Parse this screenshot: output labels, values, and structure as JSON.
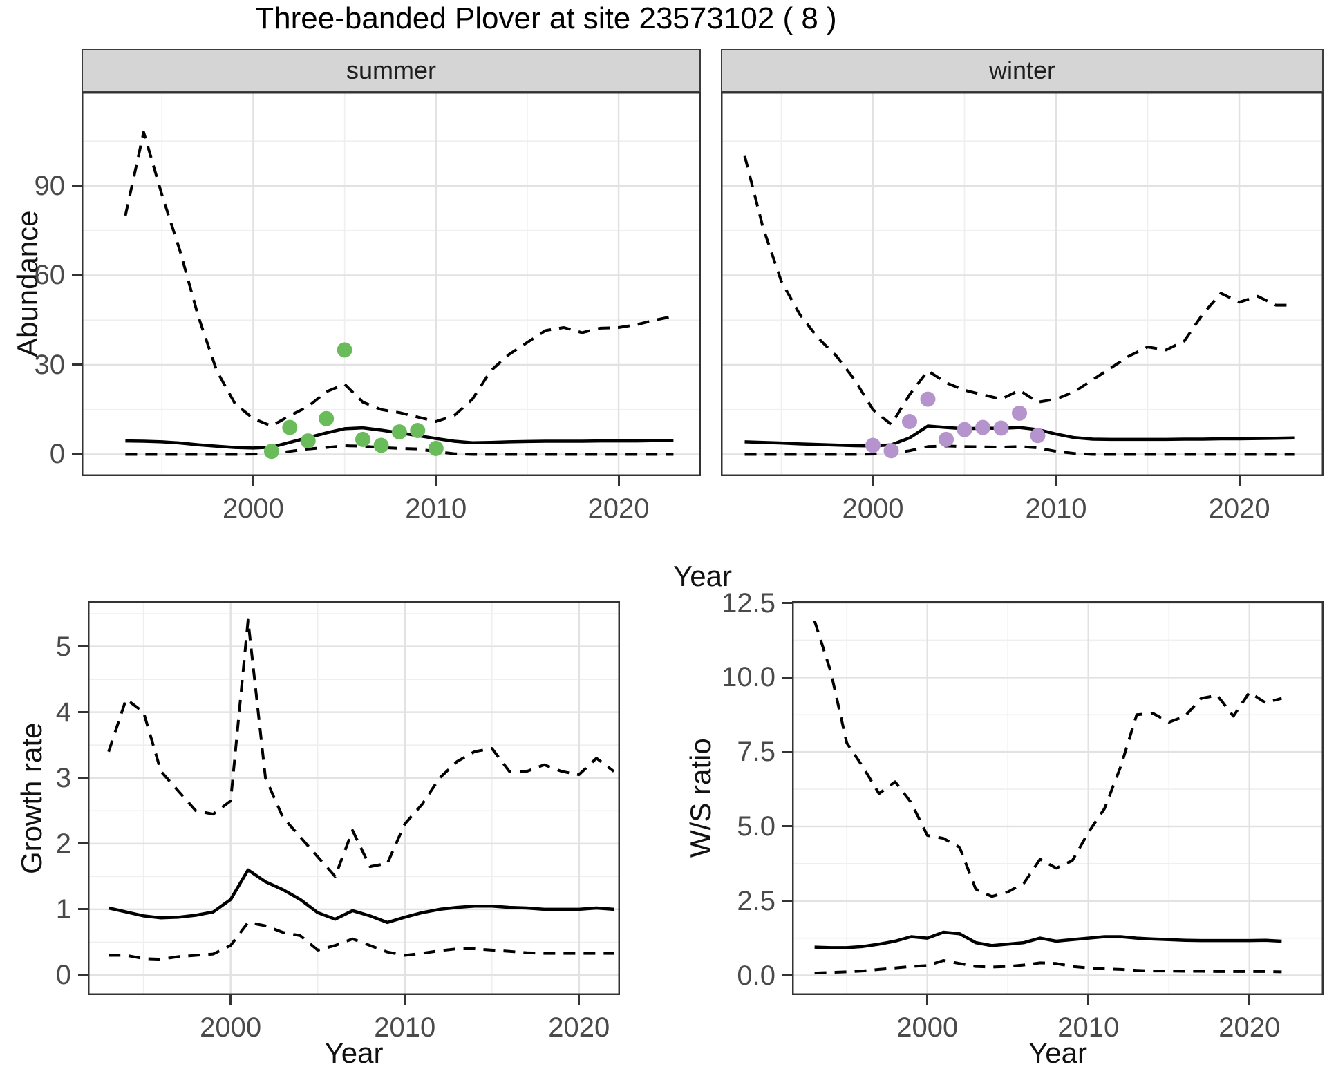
{
  "title": "Three-banded Plover at site 23573102 ( 8 )",
  "facets": [
    {
      "label": "summer"
    },
    {
      "label": "winter"
    }
  ],
  "axis_titles": {
    "top_x": "Year",
    "growth_x": "Year",
    "ws_x": "Year",
    "top_y": "Abundance",
    "growth_y": "Growth rate",
    "ws_y": "W/S ratio"
  },
  "colors": {
    "summer_points": "#6abc5a",
    "winter_points": "#b593cd",
    "line": "#000000",
    "strip_bg": "#d5d5d5",
    "grid_major": "#e2e2e2",
    "grid_minor": "#efefef",
    "panel_border": "#333333"
  },
  "chart_data": [
    {
      "id": "summer",
      "type": "line",
      "facet": "summer",
      "xlabel": "Year",
      "ylabel": "Abundance",
      "xlim": [
        1990.6,
        2024.5
      ],
      "ylim": [
        -7.3,
        121.5
      ],
      "x": [
        1993,
        1994,
        1995,
        1996,
        1997,
        1998,
        1999,
        2000,
        2001,
        2002,
        2003,
        2004,
        2005,
        2006,
        2007,
        2008,
        2009,
        2010,
        2011,
        2012,
        2013,
        2014,
        2015,
        2016,
        2017,
        2018,
        2019,
        2020,
        2021,
        2022,
        2023
      ],
      "series": [
        {
          "name": "upper_95ci",
          "style": "dashed",
          "values": [
            80,
            108,
            87,
            68,
            46,
            28,
            17,
            12,
            9.5,
            13,
            16,
            21,
            23.5,
            17.5,
            15,
            14,
            12.5,
            11,
            13,
            18.5,
            28,
            33.5,
            37.5,
            41.5,
            42.5,
            40.8,
            42.3,
            42.5,
            43.5,
            45,
            46.3
          ]
        },
        {
          "name": "median",
          "style": "solid",
          "values": [
            4.5,
            4.4,
            4.2,
            3.8,
            3.2,
            2.7,
            2.3,
            2.1,
            2.4,
            4.0,
            5.6,
            7.2,
            8.6,
            8.9,
            8.1,
            7.2,
            6.3,
            5.3,
            4.4,
            3.9,
            4.0,
            4.2,
            4.3,
            4.4,
            4.4,
            4.4,
            4.5,
            4.5,
            4.5,
            4.6,
            4.7
          ]
        },
        {
          "name": "lower_95ci",
          "style": "dashed",
          "values": [
            0,
            0,
            0,
            0,
            0,
            0,
            0,
            0.1,
            0.2,
            1.0,
            1.8,
            2.3,
            2.9,
            2.7,
            2.3,
            2.0,
            1.8,
            0.9,
            0.2,
            0,
            0,
            0,
            0,
            0,
            0,
            0,
            0,
            0,
            0,
            0,
            0
          ]
        }
      ],
      "points": {
        "name": "observed_counts",
        "color": "#6abc5a",
        "x": [
          2001,
          2002,
          2003,
          2004,
          2005,
          2006,
          2007,
          2008,
          2009,
          2010
        ],
        "y": [
          1,
          9,
          4.5,
          12,
          35,
          5,
          3,
          7.5,
          8,
          2
        ]
      },
      "x_ticks": {
        "values": [
          2000,
          2010,
          2020
        ],
        "labels": [
          "2000",
          "2010",
          "2020"
        ],
        "minor": [
          1995,
          2005,
          2015
        ]
      },
      "y_ticks": {
        "values": [
          0,
          30,
          60,
          90
        ],
        "labels": [
          "0",
          "30",
          "60",
          "90"
        ],
        "minor": [
          15,
          45,
          75,
          105
        ]
      }
    },
    {
      "id": "winter",
      "type": "line",
      "facet": "winter",
      "xlabel": "Year",
      "ylabel": "Abundance",
      "xlim": [
        1991.7,
        2024.6
      ],
      "ylim": [
        -7.3,
        121.5
      ],
      "x": [
        1993,
        1994,
        1995,
        1996,
        1997,
        1998,
        1999,
        2000,
        2001,
        2002,
        2003,
        2004,
        2005,
        2006,
        2007,
        2008,
        2009,
        2010,
        2011,
        2012,
        2013,
        2014,
        2015,
        2016,
        2017,
        2018,
        2019,
        2020,
        2021,
        2022,
        2023
      ],
      "series": [
        {
          "name": "upper_95ci",
          "style": "dashed",
          "values": [
            100,
            76,
            58,
            47,
            39,
            33,
            25,
            15,
            10,
            20,
            28,
            24,
            21.5,
            20,
            18.5,
            21.5,
            17.5,
            18.5,
            21,
            25,
            29,
            33,
            36,
            35,
            38,
            47,
            54,
            51,
            53,
            50,
            50
          ]
        },
        {
          "name": "median",
          "style": "solid",
          "values": [
            4.2,
            4.0,
            3.8,
            3.5,
            3.3,
            3.1,
            2.9,
            2.8,
            3.2,
            5.5,
            9.5,
            9.0,
            8.6,
            8.8,
            8.7,
            9.0,
            8.3,
            6.8,
            5.6,
            5.1,
            5.0,
            5.0,
            5.0,
            5.0,
            5.1,
            5.1,
            5.2,
            5.2,
            5.3,
            5.4,
            5.5
          ]
        },
        {
          "name": "lower_95ci",
          "style": "dashed",
          "values": [
            0,
            0,
            0,
            0,
            0,
            0,
            0,
            0.1,
            0.3,
            1.2,
            2.6,
            2.8,
            2.6,
            2.5,
            2.4,
            2.6,
            2.2,
            1.0,
            0.3,
            0,
            0,
            0,
            0,
            0,
            0,
            0,
            0,
            0,
            0,
            0,
            0
          ]
        }
      ],
      "points": {
        "name": "observed_counts",
        "color": "#b593cd",
        "x": [
          2000,
          2001,
          2002,
          2003,
          2004,
          2005,
          2006,
          2007,
          2008,
          2009
        ],
        "y": [
          3,
          1.2,
          11,
          18.5,
          5,
          8.3,
          9,
          8.8,
          13.8,
          6.3
        ]
      },
      "x_ticks": {
        "values": [
          2000,
          2010,
          2020
        ],
        "labels": [
          "2000",
          "2010",
          "2020"
        ],
        "minor": [
          1995,
          2005,
          2015
        ]
      },
      "y_ticks": {
        "values": [
          0,
          30,
          60,
          90
        ],
        "labels": [
          "0",
          "30",
          "60",
          "90"
        ],
        "minor": [
          15,
          45,
          75,
          105
        ]
      }
    },
    {
      "id": "growth",
      "type": "line",
      "xlabel": "Year",
      "ylabel": "Growth rate",
      "xlim": [
        1991.8,
        2022.35
      ],
      "ylim": [
        -0.305,
        5.69
      ],
      "x": [
        1993,
        1994,
        1995,
        1996,
        1997,
        1998,
        1999,
        2000,
        2001,
        2002,
        2003,
        2004,
        2005,
        2006,
        2007,
        2008,
        2009,
        2010,
        2011,
        2012,
        2013,
        2014,
        2015,
        2016,
        2017,
        2018,
        2019,
        2020,
        2021,
        2022
      ],
      "series": [
        {
          "name": "upper_95ci",
          "style": "dashed",
          "values": [
            3.4,
            4.2,
            4.0,
            3.1,
            2.8,
            2.5,
            2.45,
            2.65,
            5.4,
            3.0,
            2.4,
            2.1,
            1.8,
            1.5,
            2.2,
            1.65,
            1.7,
            2.3,
            2.6,
            3.0,
            3.25,
            3.4,
            3.45,
            3.1,
            3.1,
            3.2,
            3.1,
            3.05,
            3.3,
            3.1
          ]
        },
        {
          "name": "median",
          "style": "solid",
          "values": [
            1.02,
            0.96,
            0.9,
            0.87,
            0.88,
            0.91,
            0.96,
            1.15,
            1.6,
            1.42,
            1.3,
            1.15,
            0.95,
            0.85,
            0.98,
            0.9,
            0.8,
            0.88,
            0.95,
            1.0,
            1.03,
            1.05,
            1.05,
            1.03,
            1.02,
            1.0,
            1.0,
            1.0,
            1.02,
            1.0
          ]
        },
        {
          "name": "lower_95ci",
          "style": "dashed",
          "values": [
            0.3,
            0.3,
            0.25,
            0.24,
            0.28,
            0.3,
            0.32,
            0.45,
            0.8,
            0.75,
            0.65,
            0.6,
            0.38,
            0.45,
            0.55,
            0.45,
            0.35,
            0.3,
            0.33,
            0.37,
            0.4,
            0.4,
            0.38,
            0.36,
            0.34,
            0.33,
            0.33,
            0.33,
            0.33,
            0.33
          ]
        }
      ],
      "x_ticks": {
        "values": [
          2000,
          2010,
          2020
        ],
        "labels": [
          "2000",
          "2010",
          "2020"
        ],
        "minor": [
          1995,
          2005,
          2015
        ]
      },
      "y_ticks": {
        "values": [
          0,
          1,
          2,
          3,
          4,
          5
        ],
        "labels": [
          "0",
          "1",
          "2",
          "3",
          "4",
          "5"
        ],
        "minor": [
          0.5,
          1.5,
          2.5,
          3.5,
          4.5,
          5.5
        ]
      }
    },
    {
      "id": "ws",
      "type": "line",
      "xlabel": "Year",
      "ylabel": "W/S ratio",
      "xlim": [
        1991.6,
        2024.6
      ],
      "ylim": [
        -0.66,
        12.56
      ],
      "x": [
        1993,
        1994,
        1995,
        1996,
        1997,
        1998,
        1999,
        2000,
        2001,
        2002,
        2003,
        2004,
        2005,
        2006,
        2007,
        2008,
        2009,
        2010,
        2011,
        2012,
        2013,
        2014,
        2015,
        2016,
        2017,
        2018,
        2019,
        2020,
        2021,
        2022
      ],
      "series": [
        {
          "name": "upper_95ci",
          "style": "dashed",
          "values": [
            11.9,
            10.2,
            7.8,
            7.0,
            6.1,
            6.5,
            5.8,
            4.7,
            4.6,
            4.3,
            2.9,
            2.65,
            2.8,
            3.1,
            3.9,
            3.6,
            3.85,
            4.8,
            5.6,
            7.0,
            8.75,
            8.8,
            8.5,
            8.7,
            9.3,
            9.4,
            8.7,
            9.5,
            9.15,
            9.3
          ]
        },
        {
          "name": "median",
          "style": "solid",
          "values": [
            0.95,
            0.93,
            0.93,
            0.97,
            1.05,
            1.15,
            1.3,
            1.25,
            1.45,
            1.4,
            1.1,
            1.0,
            1.05,
            1.1,
            1.25,
            1.15,
            1.2,
            1.25,
            1.3,
            1.3,
            1.25,
            1.22,
            1.2,
            1.18,
            1.17,
            1.17,
            1.17,
            1.17,
            1.18,
            1.15
          ]
        },
        {
          "name": "lower_95ci",
          "style": "dashed",
          "values": [
            0.08,
            0.1,
            0.12,
            0.15,
            0.2,
            0.25,
            0.3,
            0.33,
            0.5,
            0.4,
            0.3,
            0.28,
            0.3,
            0.35,
            0.42,
            0.4,
            0.3,
            0.25,
            0.22,
            0.2,
            0.17,
            0.15,
            0.15,
            0.14,
            0.14,
            0.13,
            0.13,
            0.13,
            0.13,
            0.12
          ]
        }
      ],
      "x_ticks": {
        "values": [
          2000,
          2010,
          2020
        ],
        "labels": [
          "2000",
          "2010",
          "2020"
        ],
        "minor": [
          1995,
          2005,
          2015
        ]
      },
      "y_ticks": {
        "values": [
          0,
          2.5,
          5,
          7.5,
          10,
          12.5
        ],
        "labels": [
          "0.0",
          "2.5",
          "5.0",
          "7.5",
          "10.0",
          "12.5"
        ],
        "minor": [
          1.25,
          3.75,
          6.25,
          8.75,
          11.25
        ]
      }
    }
  ]
}
